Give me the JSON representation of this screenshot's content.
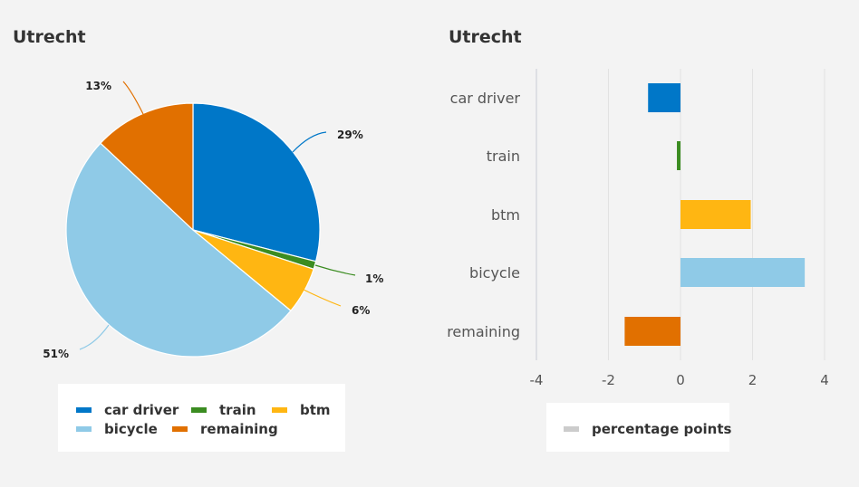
{
  "chart_data": [
    {
      "type": "pie",
      "title": "Utrecht",
      "categories": [
        "car driver",
        "train",
        "btm",
        "bicycle",
        "remaining"
      ],
      "values": [
        29,
        1,
        6,
        51,
        13
      ],
      "labels": [
        "29%",
        "1%",
        "6%",
        "51%",
        "13%"
      ],
      "colors": [
        "#0077c8",
        "#3b8c21",
        "#ffb612",
        "#8fcae7",
        "#e17000"
      ],
      "legend": [
        "car driver",
        "train",
        "btm",
        "bicycle",
        "remaining"
      ],
      "legend_position": "bottom"
    },
    {
      "type": "bar",
      "orientation": "horizontal",
      "title": "Utrecht",
      "categories": [
        "car driver",
        "train",
        "btm",
        "bicycle",
        "remaining"
      ],
      "series": [
        {
          "name": "percentage points",
          "values": [
            -0.9,
            -0.1,
            1.95,
            3.45,
            -1.55
          ]
        }
      ],
      "colors": [
        "#0077c8",
        "#3b8c21",
        "#ffb612",
        "#8fcae7",
        "#e17000"
      ],
      "xlim": [
        -4,
        4
      ],
      "xticks": [
        -4,
        -2,
        0,
        2,
        4
      ],
      "xtick_labels": [
        "-4",
        "-2",
        "0",
        "2",
        "4"
      ],
      "legend": [
        "percentage points"
      ],
      "legend_position": "bottom",
      "grid": true
    }
  ]
}
